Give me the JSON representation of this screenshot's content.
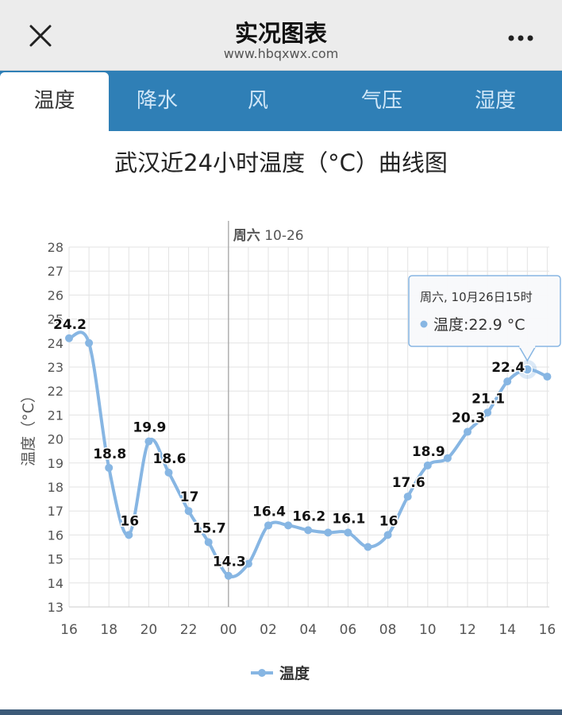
{
  "header": {
    "title": "实况图表",
    "url": "www.hbqxwx.com"
  },
  "tabs": [
    {
      "label": "温度",
      "active": true
    },
    {
      "label": "降水",
      "active": false
    },
    {
      "label": "风",
      "active": false
    },
    {
      "label": "气压",
      "active": false
    },
    {
      "label": "湿度",
      "active": false
    }
  ],
  "colors": {
    "accent": "#2f7fb6",
    "series": "#87b6e3"
  },
  "chart_data": {
    "type": "line",
    "title": "武汉近24小时温度（°C）曲线图",
    "ylabel": "温度（°C）",
    "xlabel": "",
    "ylim": [
      13,
      28
    ],
    "yticks": [
      "13",
      "14",
      "15",
      "16",
      "17",
      "18",
      "19",
      "20",
      "21",
      "22",
      "23",
      "24",
      "25",
      "26",
      "27",
      "28"
    ],
    "xtick_labels": [
      "16",
      "18",
      "20",
      "22",
      "00",
      "02",
      "04",
      "06",
      "08",
      "10",
      "12",
      "14",
      "16"
    ],
    "x": [
      "16",
      "17",
      "18",
      "19",
      "20",
      "21",
      "22",
      "23",
      "00",
      "01",
      "02",
      "03",
      "04",
      "05",
      "06",
      "07",
      "08",
      "09",
      "10",
      "11",
      "12",
      "13",
      "14",
      "15",
      "16"
    ],
    "day_marker": {
      "label": "周六",
      "date": "10-26",
      "at": "00"
    },
    "grid": true,
    "legend": "bottom",
    "series": [
      {
        "name": "温度",
        "values": [
          24.2,
          24.0,
          18.8,
          16.0,
          19.9,
          18.6,
          17.0,
          15.7,
          14.3,
          14.8,
          16.4,
          16.4,
          16.2,
          16.1,
          16.1,
          15.5,
          16.0,
          17.6,
          18.9,
          19.2,
          20.3,
          21.1,
          22.4,
          22.9,
          22.6
        ],
        "data_labels": [
          "24.2",
          "",
          "18.8",
          "16",
          "19.9",
          "18.6",
          "17",
          "15.7",
          "14.3",
          "",
          "16.4",
          "",
          "16.2",
          "",
          "16.1",
          "",
          "16",
          "17.6",
          "18.9",
          "",
          "20.3",
          "21.1",
          "22.4",
          "",
          ""
        ]
      }
    ],
    "tooltip": {
      "title": "周六, 10月26日15时",
      "series_name": "温度",
      "value": "22.9",
      "unit": "°C",
      "index": 23
    }
  }
}
